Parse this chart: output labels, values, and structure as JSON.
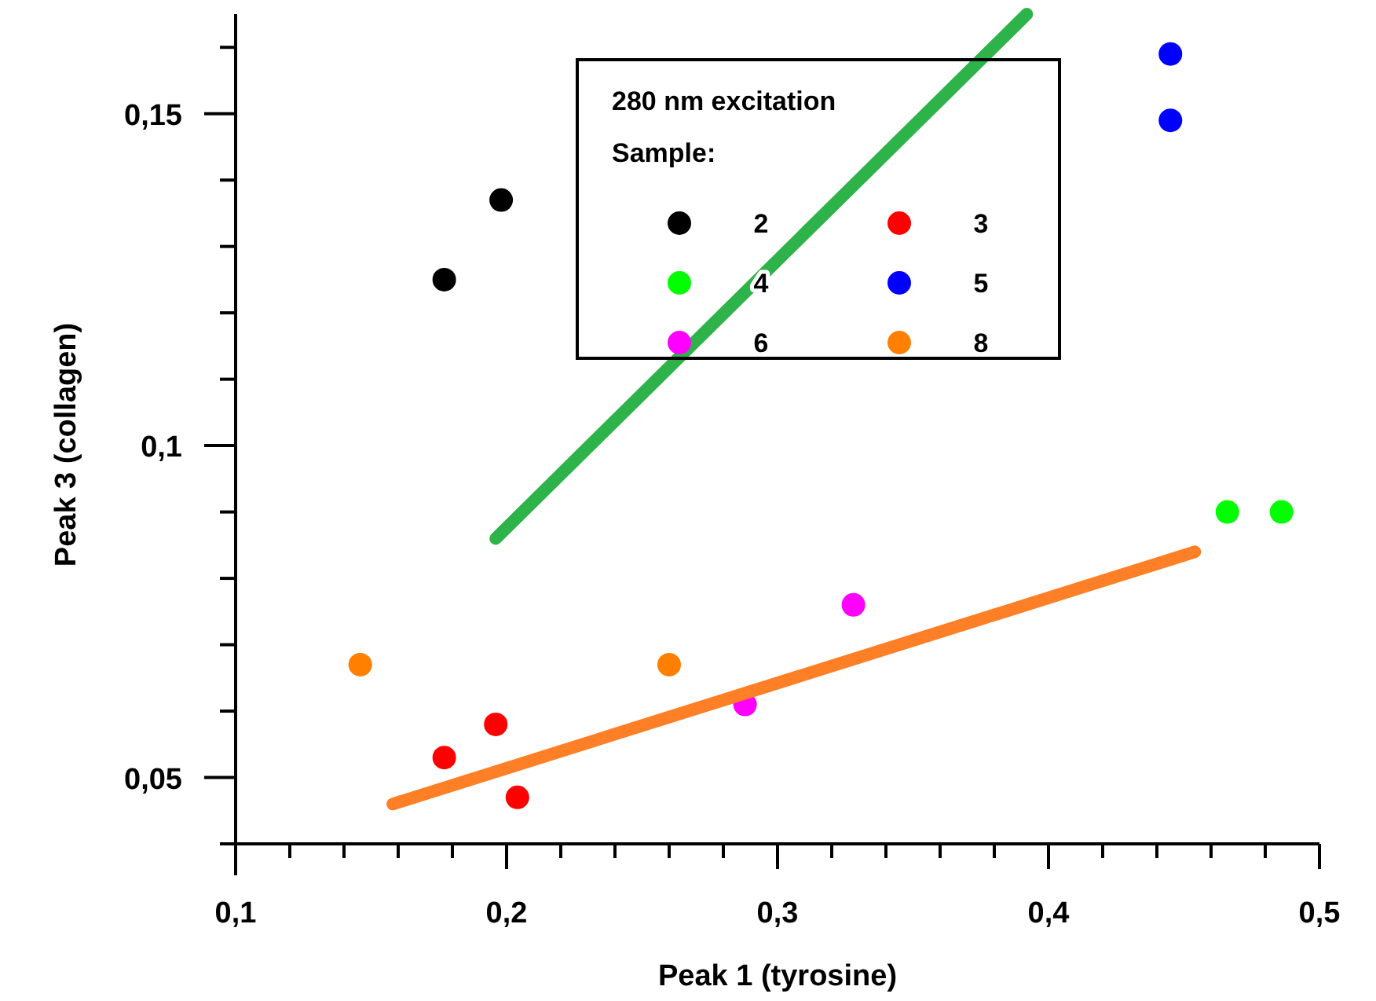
{
  "chart_data": {
    "type": "scatter",
    "xlabel": "Peak 1 (tyrosine)",
    "ylabel": "Peak 3 (collagen)",
    "legend_title": "280 nm excitation\nSample:",
    "xlim": [
      0.1,
      0.5
    ],
    "ylim": [
      0.04,
      0.165
    ],
    "xticks": [
      {
        "value": 0.1,
        "label": "0,1"
      },
      {
        "value": 0.12,
        "label": null
      },
      {
        "value": 0.14,
        "label": null
      },
      {
        "value": 0.16,
        "label": null
      },
      {
        "value": 0.18,
        "label": null
      },
      {
        "value": 0.2,
        "label": "0,2"
      },
      {
        "value": 0.22,
        "label": null
      },
      {
        "value": 0.24,
        "label": null
      },
      {
        "value": 0.26,
        "label": null
      },
      {
        "value": 0.28,
        "label": null
      },
      {
        "value": 0.3,
        "label": "0,3"
      },
      {
        "value": 0.32,
        "label": null
      },
      {
        "value": 0.34,
        "label": null
      },
      {
        "value": 0.36,
        "label": null
      },
      {
        "value": 0.38,
        "label": null
      },
      {
        "value": 0.4,
        "label": "0,4"
      },
      {
        "value": 0.42,
        "label": null
      },
      {
        "value": 0.44,
        "label": null
      },
      {
        "value": 0.46,
        "label": null
      },
      {
        "value": 0.48,
        "label": null
      },
      {
        "value": 0.5,
        "label": "0,5"
      }
    ],
    "yticks": [
      {
        "value": 0.04,
        "label": null
      },
      {
        "value": 0.05,
        "label": "0,05"
      },
      {
        "value": 0.06,
        "label": null
      },
      {
        "value": 0.07,
        "label": null
      },
      {
        "value": 0.08,
        "label": null
      },
      {
        "value": 0.09,
        "label": null
      },
      {
        "value": 0.1,
        "label": "0,1"
      },
      {
        "value": 0.11,
        "label": null
      },
      {
        "value": 0.12,
        "label": null
      },
      {
        "value": 0.13,
        "label": null
      },
      {
        "value": 0.14,
        "label": null
      },
      {
        "value": 0.15,
        "label": "0,15"
      },
      {
        "value": 0.16,
        "label": null
      }
    ],
    "grid": false,
    "legend": "top",
    "marker": "circle",
    "series": [
      {
        "name": "2",
        "color": "#000000",
        "x": [
          0.177,
          0.198
        ],
        "values": [
          0.125,
          0.137
        ]
      },
      {
        "name": "3",
        "color": "#ff0000",
        "x": [
          0.177,
          0.196,
          0.204
        ],
        "values": [
          0.053,
          0.058,
          0.047
        ]
      },
      {
        "name": "4",
        "color": "#00ff00",
        "x": [
          0.466,
          0.486
        ],
        "values": [
          0.09,
          0.09
        ]
      },
      {
        "name": "5",
        "color": "#0000ff",
        "x": [
          0.445,
          0.445
        ],
        "values": [
          0.159,
          0.149
        ]
      },
      {
        "name": "6",
        "color": "#ff00ff",
        "x": [
          0.288,
          0.328
        ],
        "values": [
          0.061,
          0.076
        ]
      },
      {
        "name": "8",
        "color": "#ff8000",
        "x": [
          0.146,
          0.26
        ],
        "values": [
          0.067,
          0.067
        ]
      },
      {
        "type": "line",
        "marker": "none",
        "color": "#2db34a",
        "x": [
          0.196,
          0.392
        ],
        "values": [
          0.086,
          0.165
        ]
      },
      {
        "type": "line",
        "marker": "none",
        "color": "#ff7f27",
        "x": [
          0.158,
          0.454
        ],
        "values": [
          0.046,
          0.084
        ]
      }
    ]
  }
}
